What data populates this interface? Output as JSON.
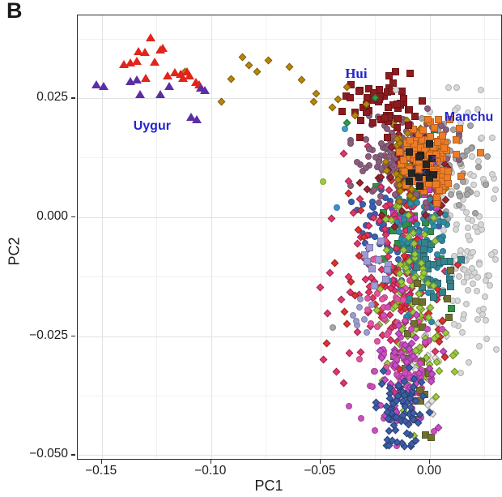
{
  "figure_label": "B",
  "chart_data": {
    "type": "scatter",
    "title": "",
    "xlabel": "PC1",
    "ylabel": "PC2",
    "xlim": [
      -0.161,
      0.0326
    ],
    "ylim": [
      -0.0508,
      0.0424
    ],
    "x_ticks": {
      "values": [
        -0.15,
        -0.1,
        -0.05,
        0.0
      ],
      "labels": [
        "−0.15",
        "−0.10",
        "−0.05",
        "0.00"
      ]
    },
    "y_ticks": {
      "values": [
        0.025,
        0.0,
        -0.025,
        -0.05
      ],
      "labels": [
        "0.025",
        "0.000",
        "−0.025",
        "−0.050"
      ]
    },
    "grid": {
      "x_major": [
        -0.15,
        -0.1,
        -0.05,
        0.0
      ],
      "x_minor": [
        -0.125,
        -0.075,
        -0.025,
        0.025
      ],
      "y_major": [
        0.025,
        0.0,
        -0.025,
        -0.05
      ],
      "y_minor": [
        0.0375,
        0.0125,
        -0.0125,
        -0.0375
      ]
    },
    "legend": "none",
    "annotations": [
      {
        "text": "Uygur",
        "x": -0.127,
        "y": 0.0191,
        "color": "#2525CD",
        "style": "sans"
      },
      {
        "text": "Hui",
        "x": -0.0337,
        "y": 0.0302,
        "color": "#2525CD",
        "style": "serif"
      },
      {
        "text": "Manchu",
        "x": 0.0178,
        "y": 0.021,
        "color": "#2525CD",
        "style": "sans"
      }
    ],
    "point_groups": [
      {
        "name": "goldenrod-trail",
        "color": "#B8860B",
        "shape": "diamond",
        "points": [
          [
            -0.0952,
            0.0242
          ],
          [
            -0.0907,
            0.029
          ],
          [
            -0.0856,
            0.0337
          ],
          [
            -0.0826,
            0.032
          ],
          [
            -0.0789,
            0.0305
          ],
          [
            -0.0737,
            0.0329
          ],
          [
            -0.0641,
            0.0315
          ],
          [
            -0.0585,
            0.0288
          ],
          [
            -0.053,
            0.0242
          ],
          [
            -0.0519,
            0.0259
          ],
          [
            -0.0444,
            0.023
          ],
          [
            -0.0419,
            0.0247
          ],
          [
            -0.0381,
            0.0273
          ],
          [
            -0.0344,
            0.0213
          ],
          [
            -0.0289,
            0.0237
          ],
          [
            -0.112,
            0.0305
          ]
        ]
      },
      {
        "name": "hui-square-outliers",
        "color": "#8E1B1E",
        "shape": "square",
        "points": [
          [
            -0.0322,
            0.0264
          ],
          [
            -0.0185,
            0.0297
          ],
          [
            -0.0167,
            0.0281
          ],
          [
            -0.0363,
            0.0251
          ],
          [
            -0.0285,
            0.0251
          ],
          [
            -0.023,
            0.0247
          ],
          [
            -0.0315,
            0.0204
          ],
          [
            -0.0259,
            0.0199
          ],
          [
            -0.0204,
            0.0208
          ],
          [
            -0.0148,
            0.0237
          ],
          [
            -0.0119,
            0.025
          ],
          [
            -0.0093,
            0.0225
          ],
          [
            -0.0156,
            0.0305
          ],
          [
            -0.04,
            0.0222
          ],
          [
            -0.0089,
            0.0302
          ]
        ]
      },
      {
        "name": "red-triangles",
        "color": "#E1251B",
        "shape": "triangle",
        "points": [
          [
            -0.1278,
            0.0378
          ],
          [
            -0.1333,
            0.0349
          ],
          [
            -0.1304,
            0.0348
          ],
          [
            -0.1233,
            0.0353
          ],
          [
            -0.122,
            0.0356
          ],
          [
            -0.14,
            0.0322
          ],
          [
            -0.137,
            0.0325
          ],
          [
            -0.134,
            0.0329
          ],
          [
            -0.126,
            0.0327
          ],
          [
            -0.1167,
            0.0305
          ],
          [
            -0.114,
            0.0302
          ],
          [
            -0.111,
            0.0307
          ],
          [
            -0.12,
            0.0298
          ],
          [
            -0.11,
            0.0298
          ],
          [
            -0.13,
            0.0293
          ],
          [
            -0.107,
            0.0285
          ],
          [
            -0.1056,
            0.0279
          ],
          [
            -0.113,
            0.0292
          ]
        ]
      },
      {
        "name": "uygur-triangles",
        "color": "#5B2FA3",
        "shape": "triangle",
        "points": [
          [
            -0.1526,
            0.0279
          ],
          [
            -0.149,
            0.0276
          ],
          [
            -0.137,
            0.0286
          ],
          [
            -0.134,
            0.029
          ],
          [
            -0.1326,
            0.0259
          ],
          [
            -0.1233,
            0.0259
          ],
          [
            -0.1048,
            0.0273
          ],
          [
            -0.103,
            0.0268
          ],
          [
            -0.109,
            0.0211
          ],
          [
            -0.1067,
            0.0206
          ],
          [
            -0.119,
            0.0276
          ]
        ]
      },
      {
        "name": "red-diamond-outliers",
        "color": "#E03131",
        "shape": "diamond",
        "points": [
          [
            -0.037,
            0.005
          ],
          [
            -0.0326,
            -0.0026
          ],
          [
            -0.0322,
            -0.0082
          ],
          [
            -0.0359,
            -0.0136
          ],
          [
            -0.0341,
            -0.0164
          ],
          [
            -0.047,
            -0.0266
          ],
          [
            -0.0433,
            -0.0097
          ],
          [
            -0.0381,
            -0.0224
          ],
          [
            0.0056,
            -0.0218
          ],
          [
            0.0044,
            -0.0261
          ],
          [
            0.0067,
            -0.0295
          ]
        ]
      },
      {
        "name": "crimson-outliers",
        "color": "#E3356B",
        "shape": "diamond",
        "points": [
          [
            -0.05,
            -0.0147
          ],
          [
            -0.0467,
            -0.0202
          ],
          [
            -0.0487,
            -0.0299
          ],
          [
            -0.0428,
            -0.0324
          ],
          [
            -0.0457,
            -0.0117
          ]
        ]
      },
      {
        "name": "orchid-outliers",
        "color": "#CC4FBC",
        "shape": "circle",
        "points": [
          [
            -0.037,
            -0.0397
          ],
          [
            -0.0315,
            -0.0423
          ],
          [
            0.0056,
            -0.0235
          ]
        ]
      },
      {
        "name": "olive-outliers",
        "color": "#6F7030",
        "shape": "square",
        "points": [
          [
            0.0093,
            -0.0112
          ],
          [
            0.0078,
            -0.0172
          ],
          [
            0.0089,
            -0.021
          ]
        ]
      },
      {
        "name": "teal-square-outliers",
        "color": "#36818B",
        "shape": "square",
        "points": [
          [
            0.0141,
            -0.0089
          ],
          [
            0.0096,
            -0.0146
          ]
        ]
      },
      {
        "name": "yellowgreen-diamond-outlier",
        "color": "#9CCB3B",
        "shape": "diamond",
        "points": [
          [
            0.0104,
            -0.0291
          ]
        ]
      },
      {
        "name": "yellowgreen-circle-outlier",
        "color": "#9CCB3B",
        "shape": "circle",
        "points": [
          [
            -0.0489,
            0.0075
          ]
        ]
      },
      {
        "name": "blue-circle-outlier",
        "color": "#3D8FD4",
        "shape": "circle",
        "points": [
          [
            -0.0426,
            0.0021
          ]
        ]
      },
      {
        "name": "green-diamond-outliers",
        "color": "#2AA04A",
        "shape": "diamond",
        "points": [
          [
            -0.0248,
            0.0251
          ],
          [
            -0.0378,
            0.0199
          ]
        ]
      },
      {
        "name": "cyan-circle-outlier",
        "color": "#3FA0C8",
        "shape": "circle",
        "points": [
          [
            -0.0389,
            0.0186
          ]
        ]
      },
      {
        "name": "silver-circle-outlier",
        "color": "#D9D9D9",
        "shape": "circle",
        "points": [
          [
            -0.0156,
            0.0268
          ]
        ]
      },
      {
        "name": "orange-square-outlier",
        "color": "#EE7C26",
        "shape": "square",
        "points": [
          [
            0.023,
            0.0136
          ]
        ]
      },
      {
        "name": "purple-x-marks",
        "color": "#5A35B0",
        "shape": "x",
        "points": [
          [
            0.0019,
            0.0123
          ],
          [
            0.0026,
            0.0111
          ],
          [
            -0.003,
            0.0092
          ]
        ]
      },
      {
        "name": "gray-circle-outlier",
        "color": "#A6A6A6",
        "shape": "circle",
        "points": [
          [
            -0.0444,
            -0.0232
          ]
        ]
      }
    ],
    "generated_clusters": [
      {
        "name": "lightgray-circles",
        "color": "#D8D8D8",
        "shape": "circle",
        "cx": 0.0178,
        "cy": -0.0056,
        "sdx": 0.0075,
        "sdy": 0.014,
        "n": 120
      },
      {
        "name": "lightgray-diamonds",
        "color": "#E2E2E2",
        "shape": "diamond",
        "cx": -0.004,
        "cy": -0.0265,
        "sdx": 0.005,
        "sdy": 0.0075,
        "n": 30
      },
      {
        "name": "gray-circles",
        "color": "#A6A6A6",
        "shape": "circle",
        "cx": 0.008,
        "cy": 0.0102,
        "sdx": 0.0078,
        "sdy": 0.0045,
        "n": 70
      },
      {
        "name": "royalblue-circles",
        "color": "#3A60B4",
        "shape": "circle",
        "cx": -0.016,
        "cy": 0.0012,
        "sdx": 0.0085,
        "sdy": 0.0062,
        "n": 65
      },
      {
        "name": "green-squares",
        "color": "#2E9244",
        "shape": "square",
        "cx": -0.009,
        "cy": 0.0008,
        "sdx": 0.009,
        "sdy": 0.0085,
        "n": 26
      },
      {
        "name": "magenta-squares",
        "color": "#C93FC2",
        "shape": "square",
        "cx": -0.006,
        "cy": 0.0032,
        "sdx": 0.006,
        "sdy": 0.0062,
        "n": 20
      },
      {
        "name": "crimson-diamonds",
        "color": "#E3356B",
        "shape": "diamond",
        "cx": -0.019,
        "cy": -0.011,
        "sdx": 0.011,
        "sdy": 0.011,
        "n": 130
      },
      {
        "name": "red-diamonds",
        "color": "#E03131",
        "shape": "diamond",
        "cx": -0.013,
        "cy": -0.012,
        "sdx": 0.011,
        "sdy": 0.012,
        "n": 40
      },
      {
        "name": "teal-circles",
        "color": "#2F8CA3",
        "shape": "circle",
        "cx": -0.0035,
        "cy": -0.0065,
        "sdx": 0.0065,
        "sdy": 0.0068,
        "n": 85
      },
      {
        "name": "teal-squares",
        "color": "#36818B",
        "shape": "square",
        "cx": 0.0005,
        "cy": -0.0095,
        "sdx": 0.0058,
        "sdy": 0.007,
        "n": 26
      },
      {
        "name": "yellowgreen-diamonds",
        "color": "#9CCB3B",
        "shape": "diamond",
        "cx": -0.008,
        "cy": -0.0205,
        "sdx": 0.0085,
        "sdy": 0.0108,
        "n": 95
      },
      {
        "name": "pink-circles",
        "color": "#E2559F",
        "shape": "circle",
        "cx": -0.019,
        "cy": -0.0235,
        "sdx": 0.008,
        "sdy": 0.0088,
        "n": 32
      },
      {
        "name": "olive-squares",
        "color": "#6F7030",
        "shape": "square",
        "cx": -0.003,
        "cy": -0.0275,
        "sdx": 0.0058,
        "sdy": 0.008,
        "n": 20
      },
      {
        "name": "orchid-circles",
        "color": "#CC4FBC",
        "shape": "circle",
        "cx": -0.0125,
        "cy": -0.0335,
        "sdx": 0.0068,
        "sdy": 0.0062,
        "n": 65
      },
      {
        "name": "orchid-diamonds",
        "color": "#C94BCB",
        "shape": "diamond",
        "cx": -0.01,
        "cy": -0.0298,
        "sdx": 0.007,
        "sdy": 0.007,
        "n": 42
      },
      {
        "name": "blue-diamonds",
        "color": "#3B5EA9",
        "shape": "diamond",
        "cx": -0.0125,
        "cy": -0.0405,
        "sdx": 0.0052,
        "sdy": 0.0047,
        "n": 72
      },
      {
        "name": "lavender-circles",
        "color": "#9B9BD0",
        "shape": "circle",
        "cx": -0.03,
        "cy": -0.021,
        "sdx": 0.0035,
        "sdy": 0.0032,
        "n": 8
      },
      {
        "name": "lavender-squares",
        "color": "#9E9BD6",
        "shape": "square",
        "cx": -0.0245,
        "cy": -0.0105,
        "sdx": 0.003,
        "sdy": 0.0036,
        "n": 10
      },
      {
        "name": "mauve-circles",
        "color": "#8A5E7D",
        "shape": "circle",
        "cx": -0.0115,
        "cy": 0.0122,
        "sdx": 0.0105,
        "sdy": 0.0045,
        "n": 150
      },
      {
        "name": "darkred-diamonds",
        "color": "#9A2430",
        "shape": "diamond",
        "cx": -0.013,
        "cy": 0.0085,
        "sdx": 0.009,
        "sdy": 0.0052,
        "n": 32
      },
      {
        "name": "goldenrod-diamonds",
        "color": "#B8860B",
        "shape": "diamond",
        "cx": -0.009,
        "cy": 0.0125,
        "sdx": 0.008,
        "sdy": 0.0045,
        "n": 38
      },
      {
        "name": "orange-squares",
        "color": "#EE7C26",
        "shape": "square",
        "cx": -0.0004,
        "cy": 0.0116,
        "sdx": 0.0062,
        "sdy": 0.0038,
        "n": 120
      },
      {
        "name": "black-squares",
        "color": "#262626",
        "shape": "square",
        "cx": -0.0037,
        "cy": 0.0102,
        "sdx": 0.0046,
        "sdy": 0.004,
        "n": 13
      },
      {
        "name": "darkred-squares-hui",
        "color": "#8E1B1E",
        "shape": "square",
        "cx": -0.0205,
        "cy": 0.0233,
        "sdx": 0.0075,
        "sdy": 0.003,
        "n": 38
      }
    ]
  }
}
